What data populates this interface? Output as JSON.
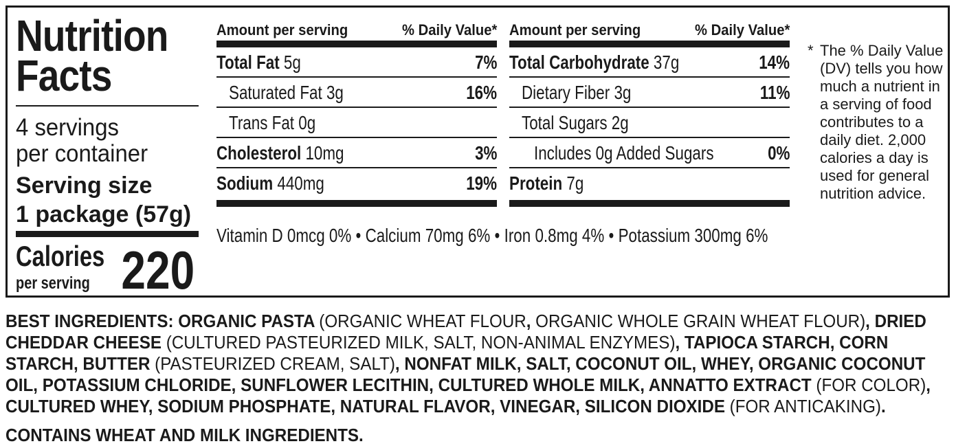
{
  "label": {
    "title_line1": "Nutrition",
    "title_line2": "Facts",
    "servings_line1": "4 servings",
    "servings_line2": "per container",
    "serving_size_label": "Serving size",
    "serving_size_value": "1 package (57g)",
    "calories_label": "Calories",
    "calories_sub": "per serving",
    "calories_value": "220"
  },
  "table_left": {
    "header_amount": "Amount per serving",
    "header_dv": "% Daily Value*",
    "rows": [
      {
        "name": "Total Fat",
        "amount": "5g",
        "dv": "7%"
      },
      {
        "name": "Saturated Fat",
        "amount": "3g",
        "dv": "16%"
      },
      {
        "name": "Trans Fat",
        "amount": "0g",
        "dv": ""
      },
      {
        "name": "Cholesterol",
        "amount": "10mg",
        "dv": "3%"
      },
      {
        "name": "Sodium",
        "amount": "440mg",
        "dv": "19%"
      }
    ]
  },
  "table_right": {
    "header_amount": "Amount per serving",
    "header_dv": "% Daily Value*",
    "rows": [
      {
        "name": "Total Carbohydrate",
        "amount": "37g",
        "dv": "14%"
      },
      {
        "name": "Dietary Fiber",
        "amount": "3g",
        "dv": "11%"
      },
      {
        "name": "Total Sugars",
        "amount": "2g",
        "dv": ""
      },
      {
        "name": "Includes 0g Added Sugars",
        "amount": "",
        "dv": "0%"
      },
      {
        "name": "Protein",
        "amount": "7g",
        "dv": ""
      }
    ]
  },
  "vitamins": "Vitamin D  0mcg  0% • Calcium  70mg  6% • Iron  0.8mg  4% • Potassium  300mg  6%",
  "dv_note": {
    "asterisk": "*",
    "text": "The % Daily Value (DV) tells you how much a nutrient in a serving of food contributes to a daily diet. 2,000 calories a day is used for general nutrition advice."
  },
  "ingredients": {
    "segments": [
      {
        "b": true,
        "t": "BEST INGREDIENTS: ORGANIC PASTA "
      },
      {
        "b": false,
        "t": "(ORGANIC WHEAT FLOUR"
      },
      {
        "b": true,
        "t": ", "
      },
      {
        "b": false,
        "t": "ORGANIC WHOLE GRAIN WHEAT FLOUR)"
      },
      {
        "b": true,
        "t": ", DRIED CHEDDAR CHEESE "
      },
      {
        "b": false,
        "t": "(CULTURED PASTEURIZED MILK, SALT, NON-ANIMAL ENZYMES)"
      },
      {
        "b": true,
        "t": ", TAPIOCA STARCH, CORN STARCH, BUTTER "
      },
      {
        "b": false,
        "t": "(PASTEURIZED CREAM, SALT)"
      },
      {
        "b": true,
        "t": ", NONFAT MILK, SALT, COCONUT OIL, WHEY, ORGANIC COCONUT OIL, POTASSIUM CHLORIDE, SUNFLOWER LECITHIN, CULTURED WHOLE MILK, ANNATTO EXTRACT "
      },
      {
        "b": false,
        "t": "(FOR COLOR)"
      },
      {
        "b": true,
        "t": ", CULTURED WHEY, SODIUM PHOSPHATE, NATURAL FLAVOR, VINEGAR, SILICON DIOXIDE "
      },
      {
        "b": false,
        "t": "(FOR ANTICAKING)"
      },
      {
        "b": true,
        "t": "."
      }
    ]
  },
  "contains": "CONTAINS WHEAT AND MILK INGREDIENTS."
}
